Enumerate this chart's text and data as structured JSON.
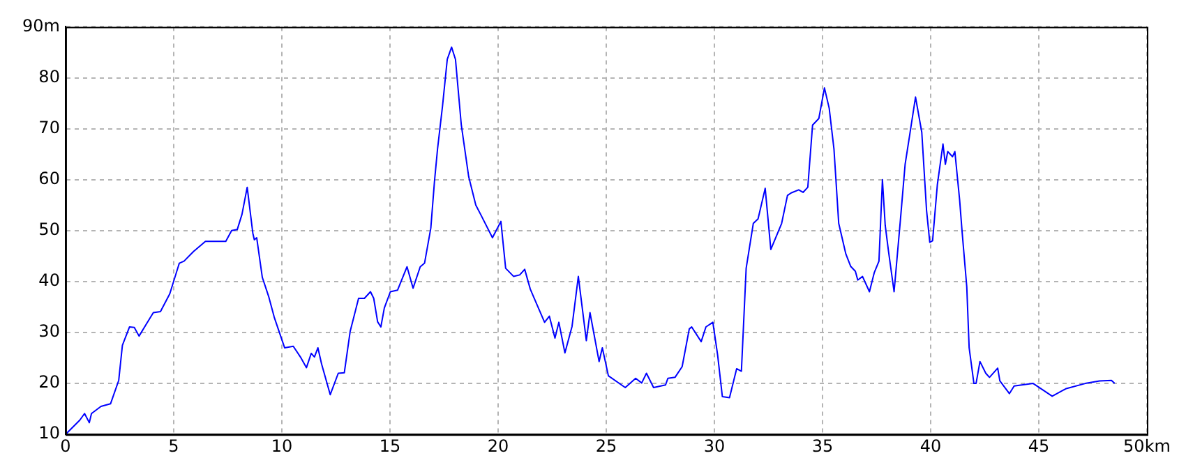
{
  "chart_data": {
    "type": "line",
    "color": "#0000ff",
    "marker": "none",
    "line_style": "solid",
    "grid": true,
    "legend": false,
    "x": [
      0,
      0.66,
      0.88,
      1.1,
      1.2,
      1.64,
      2.08,
      2.46,
      2.63,
      2.96,
      3.18,
      3.4,
      3.73,
      4.06,
      4.39,
      4.82,
      5.26,
      5.48,
      5.92,
      6.47,
      7.41,
      7.68,
      7.94,
      8.16,
      8.4,
      8.66,
      8.73,
      8.84,
      9.1,
      9.39,
      9.65,
      10.13,
      10.53,
      10.86,
      11.14,
      11.36,
      11.51,
      11.67,
      11.84,
      12.24,
      12.61,
      12.89,
      13.16,
      13.55,
      13.82,
      14.1,
      14.25,
      14.43,
      14.58,
      14.74,
      15.02,
      15.35,
      15.79,
      16.07,
      16.4,
      16.6,
      16.89,
      17.06,
      17.2,
      17.43,
      17.65,
      17.85,
      18.03,
      18.3,
      18.64,
      18.97,
      19.19,
      19.74,
      20.13,
      20.35,
      20.72,
      21.0,
      21.23,
      21.49,
      22.15,
      22.37,
      22.63,
      22.81,
      23.09,
      23.42,
      23.71,
      24.08,
      24.25,
      24.67,
      24.82,
      25.1,
      25.88,
      26.36,
      26.64,
      26.86,
      27.19,
      27.74,
      27.85,
      28.18,
      28.51,
      28.84,
      28.95,
      29.39,
      29.61,
      29.93,
      30.15,
      30.37,
      30.7,
      31.03,
      31.25,
      31.47,
      31.8,
      32.02,
      32.35,
      32.61,
      33.11,
      33.38,
      33.55,
      33.9,
      34.1,
      34.32,
      34.54,
      34.83,
      35.09,
      35.31,
      35.53,
      35.75,
      36.08,
      36.3,
      36.52,
      36.63,
      36.85,
      37.17,
      37.39,
      37.61,
      37.77,
      37.9,
      38.05,
      38.31,
      38.6,
      38.82,
      39.04,
      39.3,
      39.59,
      39.81,
      39.96,
      40.09,
      40.31,
      40.57,
      40.68,
      40.79,
      41.01,
      41.12,
      41.34,
      41.45,
      41.67,
      41.78,
      42.0,
      42.1,
      42.28,
      42.55,
      42.72,
      43.1,
      43.2,
      43.64,
      43.86,
      44.74,
      45.62,
      46.27,
      47.15,
      47.81,
      48.36,
      48.51
    ],
    "values": [
      10,
      12.8,
      14.1,
      12.3,
      14.1,
      15.5,
      16,
      20.6,
      27.5,
      31.1,
      31,
      29.3,
      31.6,
      33.9,
      34.1,
      37.6,
      43.6,
      44,
      45.9,
      47.9,
      47.9,
      50,
      50.2,
      53.2,
      58.5,
      49.5,
      48.2,
      48.6,
      40.8,
      37.1,
      33,
      27,
      27.3,
      25.2,
      23.1,
      25.9,
      25.2,
      27,
      23.8,
      17.8,
      22,
      22.1,
      30.2,
      36.7,
      36.7,
      38,
      36.7,
      32.1,
      31.1,
      34.8,
      38,
      38.3,
      42.9,
      38.7,
      42.9,
      43.6,
      50.5,
      59.7,
      66,
      74.4,
      83.6,
      86,
      83.6,
      70.7,
      60.6,
      55,
      53.2,
      48.6,
      51.8,
      42.6,
      41,
      41.3,
      42.4,
      38.5,
      32,
      33.2,
      28.9,
      32,
      26,
      31.2,
      41,
      28.4,
      33.9,
      24.3,
      27,
      21.5,
      19.2,
      21,
      20.1,
      22,
      19.2,
      19.7,
      21,
      21.2,
      23.3,
      30.7,
      31.1,
      28.2,
      31.1,
      32,
      25.6,
      17.4,
      17.2,
      22.9,
      22.4,
      42.6,
      51.4,
      52.3,
      58.3,
      46.3,
      51.4,
      56.9,
      57.4,
      58,
      57.5,
      58.5,
      70.7,
      72,
      78,
      74,
      66,
      51.4,
      45.4,
      43,
      42,
      40.3,
      41,
      38,
      41.7,
      44,
      60,
      51,
      46,
      38,
      52,
      63,
      69,
      76.2,
      69.3,
      54,
      47.7,
      48,
      59,
      67,
      63,
      65.5,
      64.5,
      65.5,
      56,
      50,
      39,
      27,
      20,
      20,
      24.3,
      22,
      21.2,
      23,
      20.5,
      18,
      19.5,
      20,
      17.5,
      19,
      20,
      20.5,
      20.6,
      20
    ],
    "xlim": [
      0,
      50
    ],
    "xticks": [
      0,
      5,
      10,
      15,
      20,
      25,
      30,
      35,
      40,
      45,
      {
        "value": 50,
        "label": "50km"
      }
    ],
    "ylim": [
      10,
      90
    ],
    "yticks": [
      10,
      20,
      30,
      40,
      50,
      60,
      70,
      80,
      {
        "value": 90,
        "label": "90m"
      }
    ]
  }
}
